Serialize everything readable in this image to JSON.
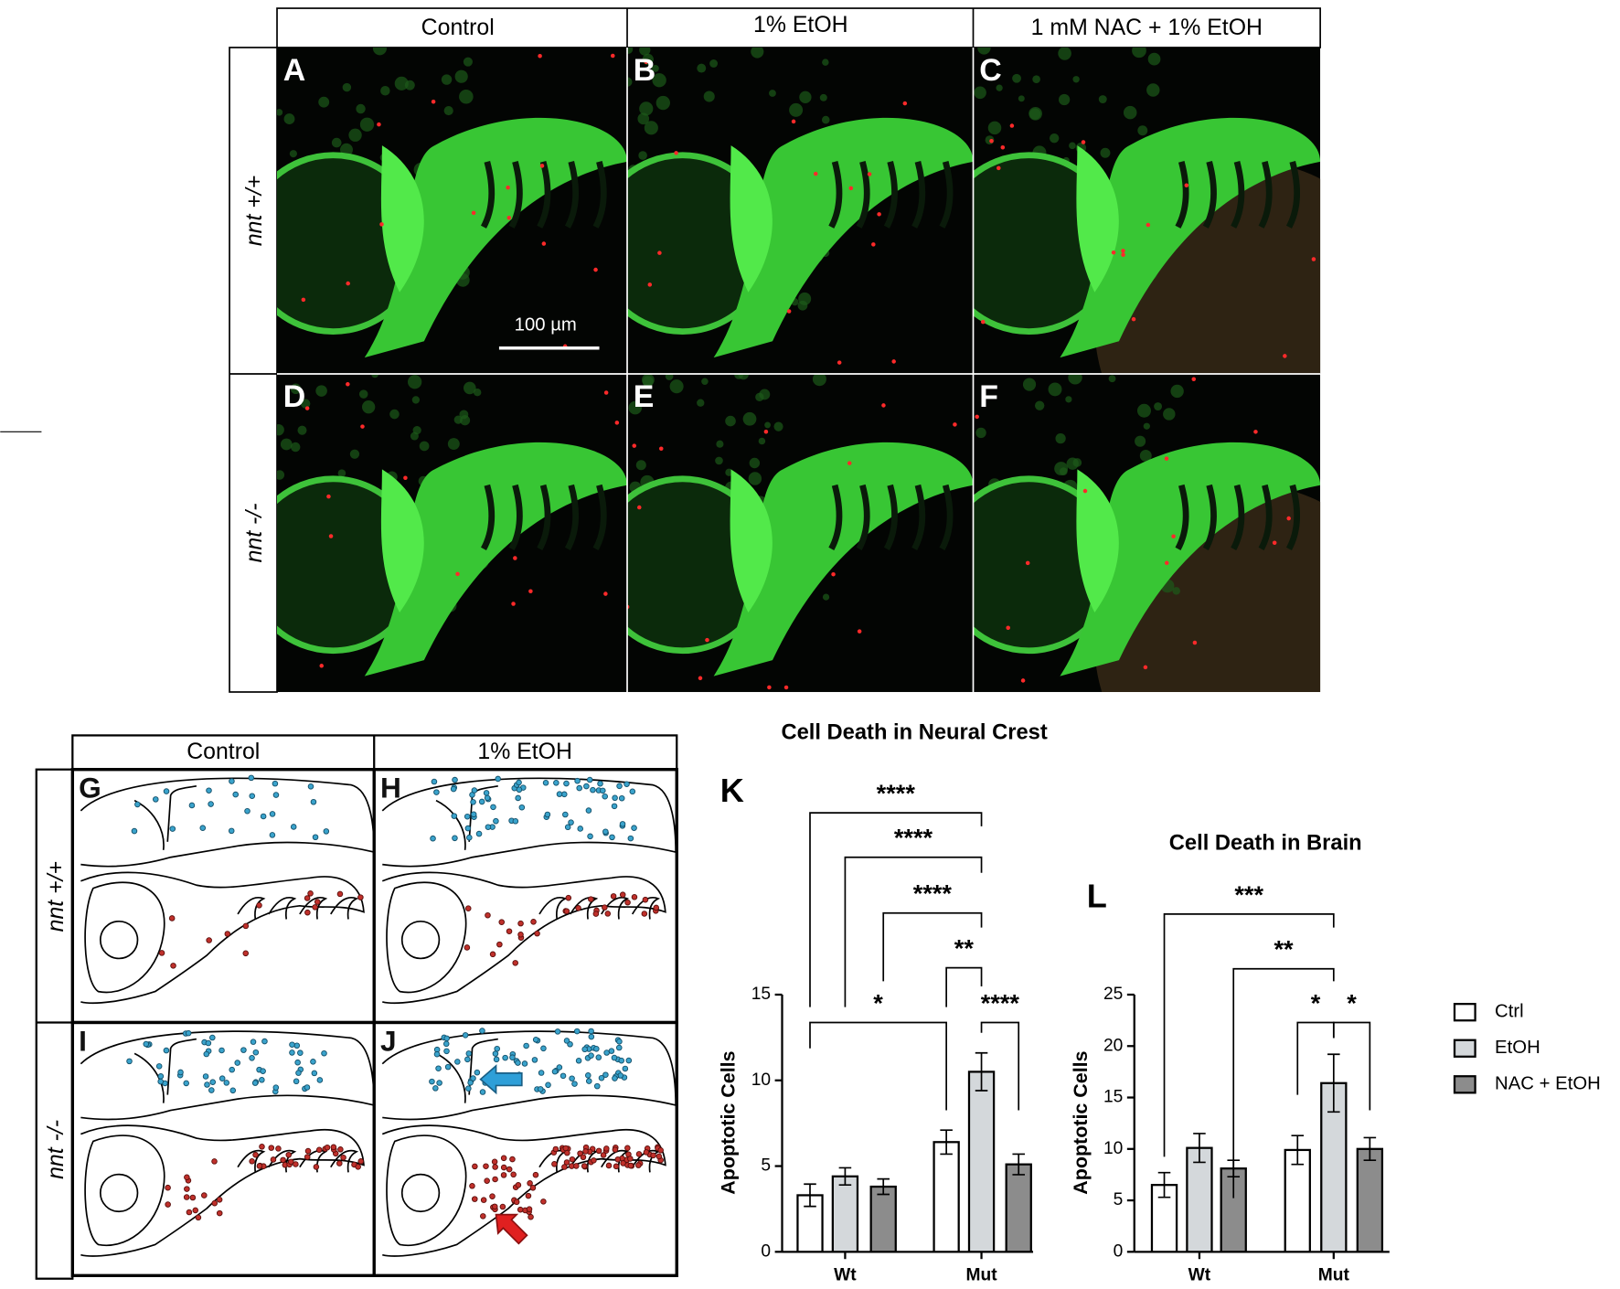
{
  "figure": {
    "top": {
      "columns": [
        "Control",
        "1% EtOH",
        "1 mM NAC + 1% EtOH"
      ],
      "rows": [
        "nnt +/+",
        "nnt -/-"
      ],
      "panels": [
        "A",
        "B",
        "C",
        "D",
        "E",
        "F"
      ],
      "scale_bar": "100 µm"
    },
    "schematic": {
      "columns": [
        "Control",
        "1% EtOH"
      ],
      "rows": [
        "nnt +/+",
        "nnt -/-"
      ],
      "panels": [
        "G",
        "H",
        "I",
        "J"
      ]
    }
  },
  "chart_data": [
    {
      "type": "bar",
      "panel": "K",
      "title": "Cell Death in Neural Crest",
      "ylabel": "Apoptotic Cells",
      "categories": [
        "Wt",
        "Mut"
      ],
      "series": [
        {
          "name": "Ctrl",
          "color": "#ffffff",
          "values": [
            3.3,
            6.4
          ],
          "errors": [
            0.65,
            0.7
          ]
        },
        {
          "name": "EtOH",
          "color": "#d4d8db",
          "values": [
            4.4,
            10.5
          ],
          "errors": [
            0.5,
            1.1
          ]
        },
        {
          "name": "NAC + EtOH",
          "color": "#8c8c8c",
          "values": [
            3.8,
            5.1
          ],
          "errors": [
            0.45,
            0.6
          ]
        }
      ],
      "ylim": [
        0,
        15
      ],
      "yticks": [
        0,
        5,
        10,
        15
      ],
      "annotations": [
        "****",
        "****",
        "****",
        "**",
        "*",
        "****"
      ]
    },
    {
      "type": "bar",
      "panel": "L",
      "title": "Cell Death in Brain",
      "ylabel": "Apoptotic Cells",
      "categories": [
        "Wt",
        "Mut"
      ],
      "series": [
        {
          "color": "#ffffff",
          "values": [
            6.5,
            9.9
          ],
          "errors": [
            1.2,
            1.4
          ]
        },
        {
          "color": "#d4d8db",
          "values": [
            10.1,
            16.4
          ],
          "errors": [
            1.4,
            2.8
          ]
        },
        {
          "color": "#8c8c8c",
          "values": [
            8.1,
            10.0
          ],
          "errors": [
            0.8,
            1.1
          ]
        }
      ],
      "ylim": [
        0,
        25
      ],
      "yticks": [
        0,
        5,
        10,
        15,
        20,
        25
      ],
      "annotations": [
        "***",
        "**",
        "*",
        "*"
      ]
    }
  ]
}
